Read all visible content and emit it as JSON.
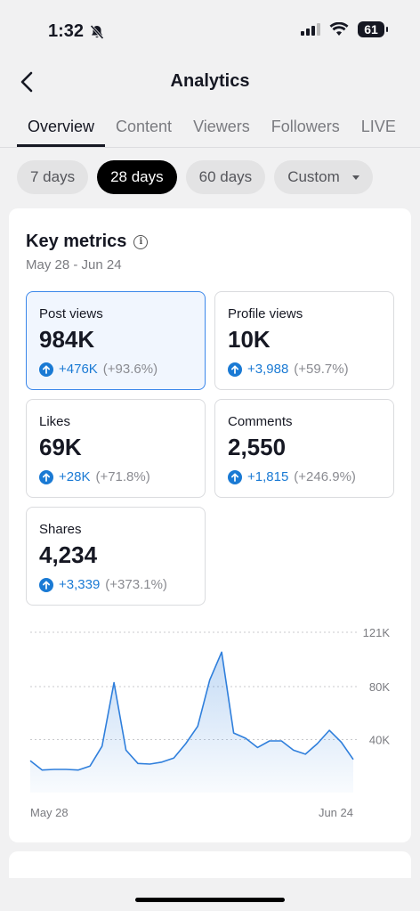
{
  "status": {
    "time": "1:32",
    "battery": "61"
  },
  "header": {
    "title": "Analytics"
  },
  "tabs": [
    {
      "label": "Overview",
      "active": true
    },
    {
      "label": "Content"
    },
    {
      "label": "Viewers"
    },
    {
      "label": "Followers"
    },
    {
      "label": "LIVE"
    }
  ],
  "chips": [
    {
      "label": "7 days"
    },
    {
      "label": "28 days",
      "active": true
    },
    {
      "label": "60 days"
    },
    {
      "label": "Custom",
      "dropdown": true
    }
  ],
  "key_metrics": {
    "title": "Key metrics",
    "date_range": "May 28 - Jun 24",
    "metrics": [
      {
        "label": "Post views",
        "value": "984K",
        "delta": "+476K",
        "pct": "(+93.6%)",
        "selected": true
      },
      {
        "label": "Profile views",
        "value": "10K",
        "delta": "+3,988",
        "pct": "(+59.7%)"
      },
      {
        "label": "Likes",
        "value": "69K",
        "delta": "+28K",
        "pct": "(+71.8%)"
      },
      {
        "label": "Comments",
        "value": "2,550",
        "delta": "+1,815",
        "pct": "(+246.9%)"
      },
      {
        "label": "Shares",
        "value": "4,234",
        "delta": "+3,339",
        "pct": "(+373.1%)"
      }
    ]
  },
  "chart_data": {
    "type": "area",
    "x_start_label": "May 28",
    "x_end_label": "Jun 24",
    "y_ticks": [
      40000,
      80000,
      121000
    ],
    "y_tick_labels": [
      "40K",
      "80K",
      "121K"
    ],
    "ylim": [
      0,
      121000
    ],
    "grid": true,
    "color": "#2f7fdc",
    "values": [
      24000,
      17000,
      17500,
      17500,
      17000,
      20000,
      35000,
      83000,
      32000,
      22000,
      21500,
      23000,
      26000,
      37000,
      50000,
      85000,
      106000,
      45000,
      41000,
      34000,
      39000,
      39000,
      32000,
      29000,
      37000,
      47000,
      38000,
      25000
    ]
  }
}
